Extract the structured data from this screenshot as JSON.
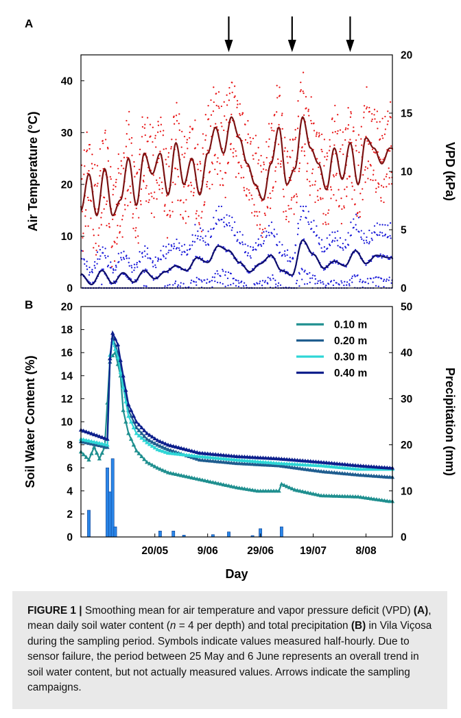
{
  "figure": {
    "arrow_dates": [
      "2018-06-17",
      "2018-07-11",
      "2018-08-02"
    ]
  },
  "chart_data": [
    {
      "panel": "A",
      "type": "line",
      "xlabel": "",
      "ylabel": "Air Temperature (°C)",
      "y2label": "VPD (kPa)",
      "ylim": [
        0,
        45
      ],
      "y2lim": [
        0,
        20
      ],
      "yticks": [
        "0",
        "10",
        "20",
        "30",
        "40"
      ],
      "y2ticks": [
        "0",
        "5",
        "10",
        "15",
        "20"
      ],
      "x_range": [
        "2018-04-22",
        "2018-08-18"
      ],
      "colors": {
        "temp_points": "#e8191a",
        "vpd_points": "#1a1ad9",
        "temp_mean": "#7b1212",
        "vpd_mean": "#0d0d6b"
      },
      "series": [
        {
          "kind": "smoothed temperature mean",
          "x": [
            "2018-04-22",
            "2018-04-25",
            "2018-04-28",
            "2018-05-01",
            "2018-05-04",
            "2018-05-07",
            "2018-05-10",
            "2018-05-13",
            "2018-05-16",
            "2018-05-19",
            "2018-05-22",
            "2018-05-25",
            "2018-05-28",
            "2018-05-31",
            "2018-06-03",
            "2018-06-06",
            "2018-06-09",
            "2018-06-12",
            "2018-06-15",
            "2018-06-18",
            "2018-06-21",
            "2018-06-24",
            "2018-06-27",
            "2018-06-30",
            "2018-07-03",
            "2018-07-06",
            "2018-07-09",
            "2018-07-12",
            "2018-07-15",
            "2018-07-18",
            "2018-07-21",
            "2018-07-24",
            "2018-07-27",
            "2018-07-30",
            "2018-08-02",
            "2018-08-05",
            "2018-08-08",
            "2018-08-11",
            "2018-08-14",
            "2018-08-17"
          ],
          "values": [
            15,
            22,
            14,
            23,
            14,
            17,
            25,
            16,
            26,
            22,
            26,
            18,
            28,
            20,
            25,
            18,
            26,
            31,
            26,
            33,
            29,
            24,
            20,
            17,
            24,
            31,
            20,
            23,
            33,
            27,
            24,
            19,
            27,
            21,
            28,
            20,
            29,
            27,
            24,
            27
          ]
        },
        {
          "kind": "smoothed VPD mean (kPa)",
          "x": [
            "2018-04-22",
            "2018-04-26",
            "2018-04-30",
            "2018-05-04",
            "2018-05-08",
            "2018-05-12",
            "2018-05-16",
            "2018-05-20",
            "2018-05-24",
            "2018-05-28",
            "2018-06-01",
            "2018-06-05",
            "2018-06-09",
            "2018-06-13",
            "2018-06-17",
            "2018-06-21",
            "2018-06-25",
            "2018-06-29",
            "2018-07-03",
            "2018-07-07",
            "2018-07-11",
            "2018-07-15",
            "2018-07-19",
            "2018-07-23",
            "2018-07-27",
            "2018-07-31",
            "2018-08-04",
            "2018-08-08",
            "2018-08-12",
            "2018-08-17"
          ],
          "values": [
            1.2,
            0.3,
            1.5,
            0.4,
            1.3,
            0.5,
            1.5,
            0.8,
            1.4,
            1.9,
            1.5,
            2.6,
            2.2,
            3.6,
            3.2,
            2.2,
            1.4,
            2.1,
            2.8,
            1.5,
            1.1,
            4.1,
            2.9,
            1.7,
            2.3,
            1.9,
            3.2,
            2.1,
            2.8,
            2.6
          ]
        }
      ]
    },
    {
      "panel": "B",
      "type": "line",
      "xlabel": "Day",
      "ylabel": "Soil Water Content (%)",
      "y2label": "Precipitation (mm)",
      "ylim": [
        0,
        20
      ],
      "y2lim": [
        0,
        50
      ],
      "yticks": [
        "0",
        "2",
        "4",
        "6",
        "8",
        "10",
        "12",
        "14",
        "16",
        "18",
        "20"
      ],
      "y2ticks": [
        "0",
        "10",
        "20",
        "30",
        "40",
        "50"
      ],
      "xticks": [
        {
          "label": "20/05",
          "date": "2018-05-20"
        },
        {
          "label": "9/06",
          "date": "2018-06-09"
        },
        {
          "label": "29/06",
          "date": "2018-06-29"
        },
        {
          "label": "19/07",
          "date": "2018-07-19"
        },
        {
          "label": "8/08",
          "date": "2018-08-08"
        }
      ],
      "x_range": [
        "2018-04-22",
        "2018-08-18"
      ],
      "legend_position": "top-right",
      "series": [
        {
          "name": "0.10 m",
          "color": "#1f8f8f",
          "x": [
            "2018-04-22",
            "2018-04-25",
            "2018-04-27",
            "2018-04-29",
            "2018-05-01",
            "2018-05-03",
            "2018-05-05",
            "2018-05-06",
            "2018-05-07",
            "2018-05-08",
            "2018-05-10",
            "2018-05-13",
            "2018-05-17",
            "2018-05-21",
            "2018-05-25",
            "2018-06-06",
            "2018-06-20",
            "2018-06-28",
            "2018-07-06",
            "2018-07-07",
            "2018-07-12",
            "2018-07-22",
            "2018-08-05",
            "2018-08-17"
          ],
          "values": [
            7.4,
            6.7,
            7.8,
            6.8,
            7.8,
            15.5,
            16.0,
            15.0,
            14.0,
            11.0,
            9.0,
            7.5,
            6.5,
            6.0,
            5.6,
            5.0,
            4.3,
            4.0,
            4.0,
            4.6,
            4.1,
            3.6,
            3.5,
            3.1
          ]
        },
        {
          "name": "0.20 m",
          "color": "#1f5d8f",
          "x": [
            "2018-04-22",
            "2018-05-02",
            "2018-05-03",
            "2018-05-04",
            "2018-05-06",
            "2018-05-08",
            "2018-05-10",
            "2018-05-13",
            "2018-05-17",
            "2018-05-21",
            "2018-05-25",
            "2018-06-06",
            "2018-06-20",
            "2018-07-06",
            "2018-07-22",
            "2018-08-05",
            "2018-08-17"
          ],
          "values": [
            8.3,
            7.8,
            15.2,
            17.3,
            16.0,
            13.5,
            11.0,
            9.5,
            8.5,
            8.0,
            7.6,
            6.7,
            6.4,
            6.2,
            5.7,
            5.4,
            5.2
          ]
        },
        {
          "name": "0.30 m",
          "color": "#2ed6d6",
          "x": [
            "2018-04-22",
            "2018-05-02",
            "2018-05-03",
            "2018-05-04",
            "2018-05-06",
            "2018-05-08",
            "2018-05-10",
            "2018-05-13",
            "2018-05-17",
            "2018-05-21",
            "2018-05-25",
            "2018-06-06",
            "2018-06-20",
            "2018-07-06",
            "2018-07-22",
            "2018-08-05",
            "2018-08-17"
          ],
          "values": [
            8.5,
            8.0,
            15.8,
            17.0,
            15.6,
            13.0,
            10.5,
            9.0,
            8.2,
            7.6,
            7.3,
            7.0,
            6.7,
            6.4,
            6.2,
            5.9,
            5.9
          ]
        },
        {
          "name": "0.40 m",
          "color": "#0d1f8c",
          "x": [
            "2018-04-22",
            "2018-05-02",
            "2018-05-03",
            "2018-05-04",
            "2018-05-06",
            "2018-05-08",
            "2018-05-10",
            "2018-05-13",
            "2018-05-17",
            "2018-05-21",
            "2018-05-25",
            "2018-06-06",
            "2018-06-20",
            "2018-07-06",
            "2018-07-22",
            "2018-08-05",
            "2018-08-17"
          ],
          "values": [
            9.3,
            8.5,
            15.5,
            17.7,
            16.7,
            14.0,
            11.5,
            10.0,
            9.0,
            8.4,
            8.0,
            7.3,
            7.0,
            6.8,
            6.5,
            6.2,
            6.0
          ]
        }
      ],
      "bars": {
        "name": "Precipitation",
        "color": "#2a86e8",
        "x": [
          "2018-04-25",
          "2018-05-02",
          "2018-05-03",
          "2018-05-04",
          "2018-05-05",
          "2018-05-22",
          "2018-05-27",
          "2018-05-31",
          "2018-06-11",
          "2018-06-17",
          "2018-06-26",
          "2018-06-29",
          "2018-07-07"
        ],
        "values": [
          5.8,
          15.0,
          9.8,
          17.0,
          2.2,
          1.3,
          1.3,
          0.4,
          0.5,
          1.1,
          0.3,
          1.8,
          2.2
        ]
      }
    }
  ],
  "caption": {
    "label": "FIGURE 1 |",
    "text_1": " Smoothing mean for air temperature and vapor pressure deficit (VPD) ",
    "bold_a": "(A)",
    "text_2": ", mean daily soil water content (",
    "italic_n": "n",
    "text_3": " = 4 per depth) and total precipitation ",
    "bold_b": "(B)",
    "text_4": " in Vila Viçosa during the sampling period. Symbols indicate values measured half-hourly. Due to sensor failure, the period between 25 May and 6 June represents an overall trend in soil water content, but not actually measured values. Arrows indicate the sampling campaigns."
  }
}
